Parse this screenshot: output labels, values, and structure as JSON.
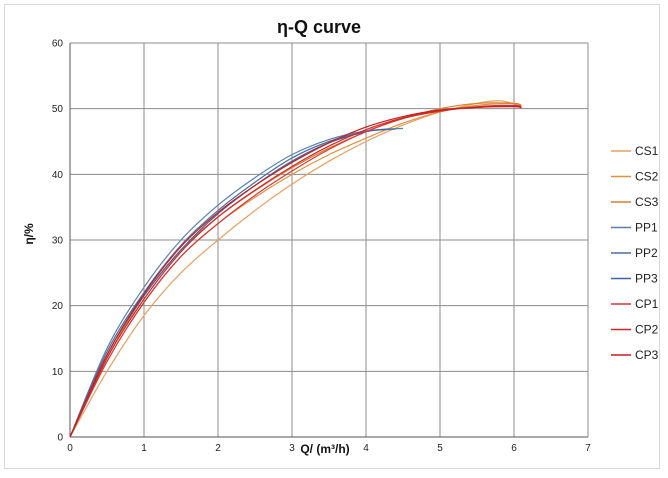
{
  "chart_data": {
    "type": "line",
    "title": "η-Q  curve",
    "xlabel": "Q/  (m³/h)",
    "ylabel": "η/%",
    "xlim": [
      0,
      7
    ],
    "ylim": [
      0,
      60
    ],
    "xticks": [
      "0",
      "1",
      "2",
      "3",
      "4",
      "5",
      "6",
      "7"
    ],
    "yticks": [
      "0",
      "10",
      "20",
      "30",
      "40",
      "50",
      "60"
    ],
    "grid": true,
    "legend_position": "right",
    "series": [
      {
        "name": "CS1",
        "color": "#E8A060",
        "x": [
          0,
          0.5,
          1,
          1.5,
          2,
          2.5,
          3,
          3.5,
          4,
          4.5,
          5,
          5.5,
          5.8,
          6.05
        ],
        "y": [
          0,
          10,
          18.5,
          25,
          30,
          34.5,
          38.5,
          42,
          45,
          47.5,
          49.5,
          50.8,
          51.2,
          50.6
        ]
      },
      {
        "name": "CS2",
        "color": "#E0913E",
        "x": [
          0,
          0.5,
          1,
          1.5,
          2,
          2.5,
          3,
          3.5,
          4,
          4.5,
          5,
          5.5,
          6,
          6.1
        ],
        "y": [
          0,
          11.5,
          20.5,
          27.5,
          32.5,
          36.5,
          40,
          43,
          45.5,
          47.8,
          49.5,
          50.5,
          50.8,
          50.5
        ]
      },
      {
        "name": "CS3",
        "color": "#D98030",
        "x": [
          0,
          0.5,
          1,
          1.5,
          2,
          2.5,
          3,
          3.5,
          4,
          4.5,
          5,
          5.5,
          6,
          6.1
        ],
        "y": [
          0,
          12,
          21.5,
          28.5,
          33.5,
          37.5,
          41,
          44,
          46.5,
          48.5,
          50,
          50.8,
          50.8,
          50.4
        ]
      },
      {
        "name": "PP1",
        "color": "#5A7FAF",
        "x": [
          0,
          0.5,
          1,
          1.5,
          2,
          2.5,
          3,
          3.5,
          4,
          4.5
        ],
        "y": [
          0,
          13.5,
          22.8,
          30,
          35.3,
          39.5,
          43,
          45.3,
          46.6,
          47
        ]
      },
      {
        "name": "PP2",
        "color": "#4A6FA0",
        "x": [
          0,
          0.5,
          1,
          1.5,
          2,
          2.5,
          3,
          3.5,
          4,
          4.4
        ],
        "y": [
          0,
          13,
          22,
          29.2,
          34.5,
          38.8,
          42.5,
          45,
          46.5,
          46.9
        ]
      },
      {
        "name": "PP3",
        "color": "#3E62A8",
        "x": [
          0,
          0.5,
          1,
          1.5,
          2,
          2.5,
          3,
          3.5,
          4,
          4.3
        ],
        "y": [
          0,
          12.5,
          21.5,
          28.5,
          34,
          38.3,
          42,
          44.8,
          46.5,
          46.9
        ]
      },
      {
        "name": "CP1",
        "color": "#D93535",
        "x": [
          0,
          0.5,
          1,
          1.5,
          2,
          2.5,
          3,
          3.5,
          4,
          4.5,
          5,
          5.5,
          6,
          6.1
        ],
        "y": [
          0,
          11.5,
          20.5,
          27.5,
          32.5,
          36.8,
          40.5,
          43.8,
          46.5,
          48.5,
          49.6,
          50.3,
          50.5,
          50.3
        ]
      },
      {
        "name": "CP2",
        "color": "#CC2A2A",
        "x": [
          0,
          0.5,
          1,
          1.5,
          2,
          2.5,
          3,
          3.5,
          4,
          4.5,
          5,
          5.5,
          6,
          6.1
        ],
        "y": [
          0,
          12,
          21,
          28.2,
          33.5,
          37.6,
          41.2,
          44.3,
          46.8,
          48.6,
          49.7,
          50.2,
          50.4,
          50.2
        ]
      },
      {
        "name": "CP3",
        "color": "#C42020",
        "x": [
          0,
          0.5,
          1,
          1.5,
          2,
          2.5,
          3,
          3.5,
          4,
          4.5,
          5,
          5.5,
          6,
          6.1
        ],
        "y": [
          0,
          12.5,
          21.8,
          29,
          34.2,
          38.3,
          41.8,
          44.8,
          47.2,
          48.8,
          49.8,
          50.2,
          50.3,
          50.1
        ]
      }
    ]
  }
}
